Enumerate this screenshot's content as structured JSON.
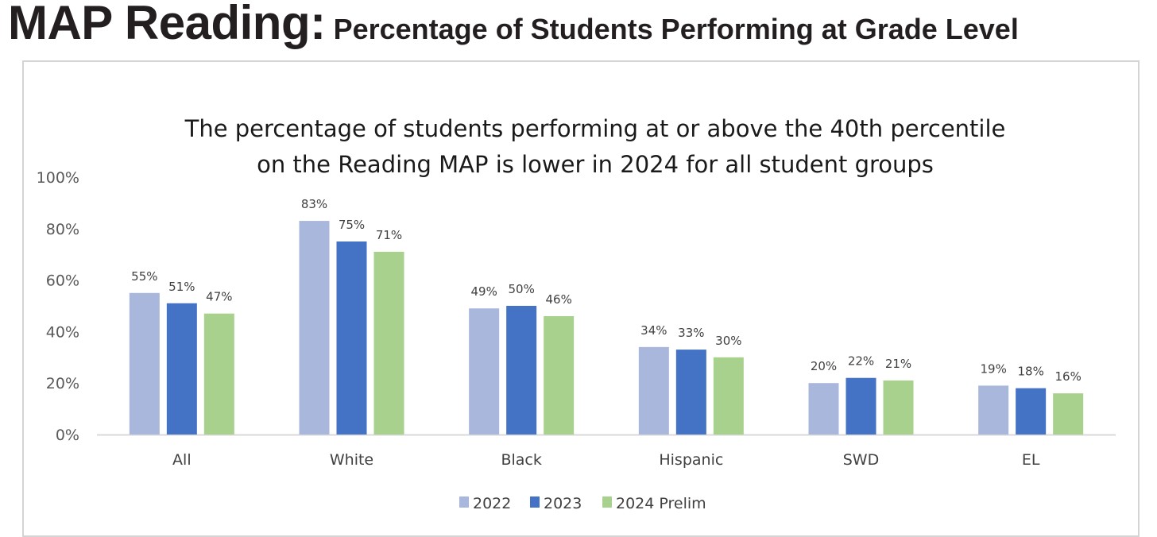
{
  "heading": {
    "main": "MAP Reading:",
    "sub": "Percentage of Students Performing at Grade Level"
  },
  "chart_data": {
    "type": "bar",
    "title_lines": [
      "The percentage of students performing at or above the 40th percentile",
      "on the Reading MAP is lower in 2024 for all student groups"
    ],
    "categories": [
      "All",
      "White",
      "Black",
      "Hispanic",
      "SWD",
      "EL"
    ],
    "series": [
      {
        "name": "2022",
        "color": "#a9b7dc",
        "values": [
          55,
          83,
          49,
          34,
          20,
          19
        ]
      },
      {
        "name": "2023",
        "color": "#4472c4",
        "values": [
          51,
          75,
          50,
          33,
          22,
          18
        ]
      },
      {
        "name": "2024 Prelim",
        "color": "#a9d18e",
        "values": [
          47,
          71,
          46,
          30,
          21,
          16
        ]
      }
    ],
    "yticks": [
      "0%",
      "20%",
      "40%",
      "60%",
      "80%",
      "100%"
    ],
    "ylim": [
      0,
      100
    ],
    "data_label_suffix": "%",
    "grid": false,
    "legend_position": "bottom"
  }
}
